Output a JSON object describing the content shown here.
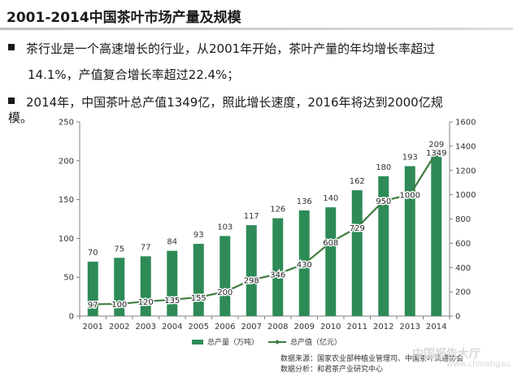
{
  "page": {
    "title": "2001-2014中国茶叶市场产量及规模",
    "bullet1_line1": "茶行业是一个高速增长的行业，从2001年开始，茶叶产量的年均增长率超过",
    "bullet1_line2": "14.1%，产值复合增长率超过22.4%；",
    "bullet2_line1": "2014年，中国茶叶总产值1349亿，照此增长速度，2016年将达到2000亿规",
    "bullet2_line2": "模。",
    "source_line1": "数据来源：国家农业部种植业管理司、中国茶叶流通协会",
    "source_line2": "数据分析：和君茶产业研究中心",
    "watermark": "中国报告大厅",
    "watermark_sub": "www.chinabgao.com"
  },
  "chart_data": {
    "type": "bar",
    "categories": [
      "2001",
      "2002",
      "2003",
      "2004",
      "2005",
      "2006",
      "2007",
      "2008",
      "2009",
      "2010",
      "2011",
      "2012",
      "2013",
      "2014"
    ],
    "series": [
      {
        "name": "总产量（万吨）",
        "type": "bar",
        "axis": "left",
        "color": "#2e8b57",
        "values": [
          70,
          75,
          77,
          84,
          93,
          103,
          117,
          126,
          136,
          140,
          162,
          180,
          193,
          209
        ]
      },
      {
        "name": "总产值（亿元）",
        "type": "line",
        "axis": "right",
        "color": "#3e7d3e",
        "values": [
          97,
          100,
          120,
          135,
          155,
          200,
          298,
          346,
          430,
          608,
          729,
          950,
          1000,
          1349
        ]
      }
    ],
    "y_left": {
      "min": 0,
      "max": 250,
      "ticks": [
        0,
        50,
        100,
        150,
        200,
        250
      ]
    },
    "y_right": {
      "min": 0,
      "max": 1600,
      "ticks": [
        0,
        200,
        400,
        600,
        800,
        1000,
        1200,
        1400,
        1600
      ]
    },
    "legend": "bottom"
  }
}
